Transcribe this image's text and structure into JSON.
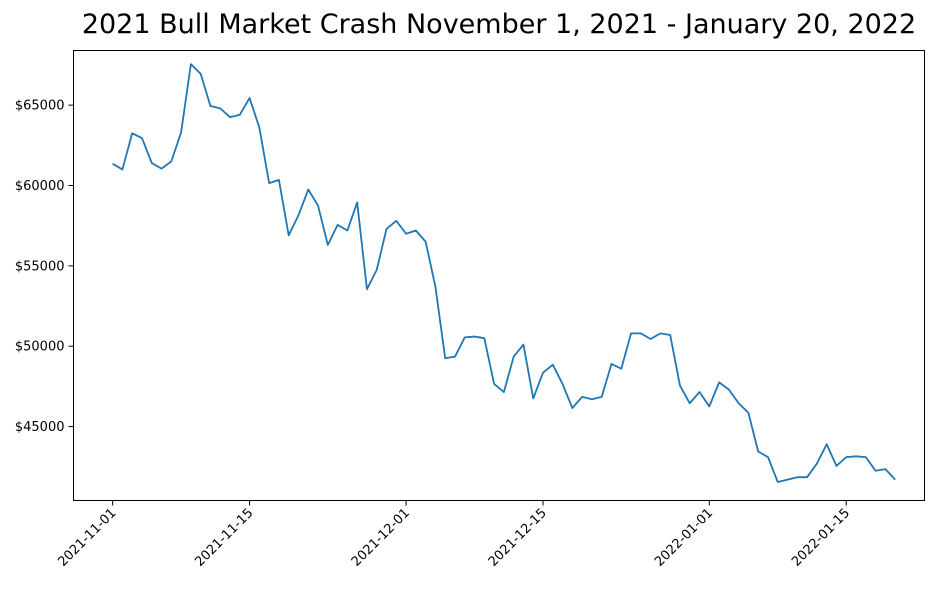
{
  "chart_data": {
    "type": "line",
    "title": "2021 Bull Market Crash November 1, 2021 - January 20, 2022",
    "xlabel": "",
    "ylabel": "",
    "grid": false,
    "line_color": "#1f77b4",
    "x_start": "2021-11-01",
    "x_range": [
      "2021-10-28",
      "2022-01-23"
    ],
    "ylim": [
      40400,
      68400
    ],
    "x_ticks": [
      {
        "date": "2021-11-01",
        "label": "2021-11-01"
      },
      {
        "date": "2021-11-15",
        "label": "2021-11-15"
      },
      {
        "date": "2021-12-01",
        "label": "2021-12-01"
      },
      {
        "date": "2021-12-15",
        "label": "2021-12-15"
      },
      {
        "date": "2022-01-01",
        "label": "2022-01-01"
      },
      {
        "date": "2022-01-15",
        "label": "2022-01-15"
      }
    ],
    "y_ticks": [
      {
        "value": 45000,
        "label": "$45000"
      },
      {
        "value": 50000,
        "label": "$50000"
      },
      {
        "value": 55000,
        "label": "$55000"
      },
      {
        "value": 60000,
        "label": "$60000"
      },
      {
        "value": 65000,
        "label": "$65000"
      }
    ],
    "series": [
      {
        "name": "",
        "values": [
          61350,
          61000,
          63250,
          62950,
          61400,
          61050,
          61500,
          63300,
          67550,
          66950,
          64950,
          64800,
          64250,
          64400,
          65450,
          63600,
          60150,
          60350,
          56900,
          58150,
          59750,
          58750,
          56300,
          57550,
          57200,
          58950,
          53550,
          54750,
          57300,
          57800,
          57000,
          57200,
          56500,
          53700,
          49250,
          49350,
          50550,
          50600,
          50500,
          47650,
          47150,
          49350,
          50100,
          46750,
          48350,
          48850,
          47650,
          46150,
          46850,
          46700,
          46850,
          48900,
          48600,
          50800,
          50800,
          50450,
          50800,
          50700,
          47550,
          46450,
          47150,
          46250,
          47750,
          47300,
          46450,
          45850,
          43450,
          43100,
          41550,
          41700,
          41850,
          41850,
          42700,
          43900,
          42550,
          43100,
          43150,
          43100,
          42250,
          42350,
          41700
        ]
      }
    ]
  }
}
